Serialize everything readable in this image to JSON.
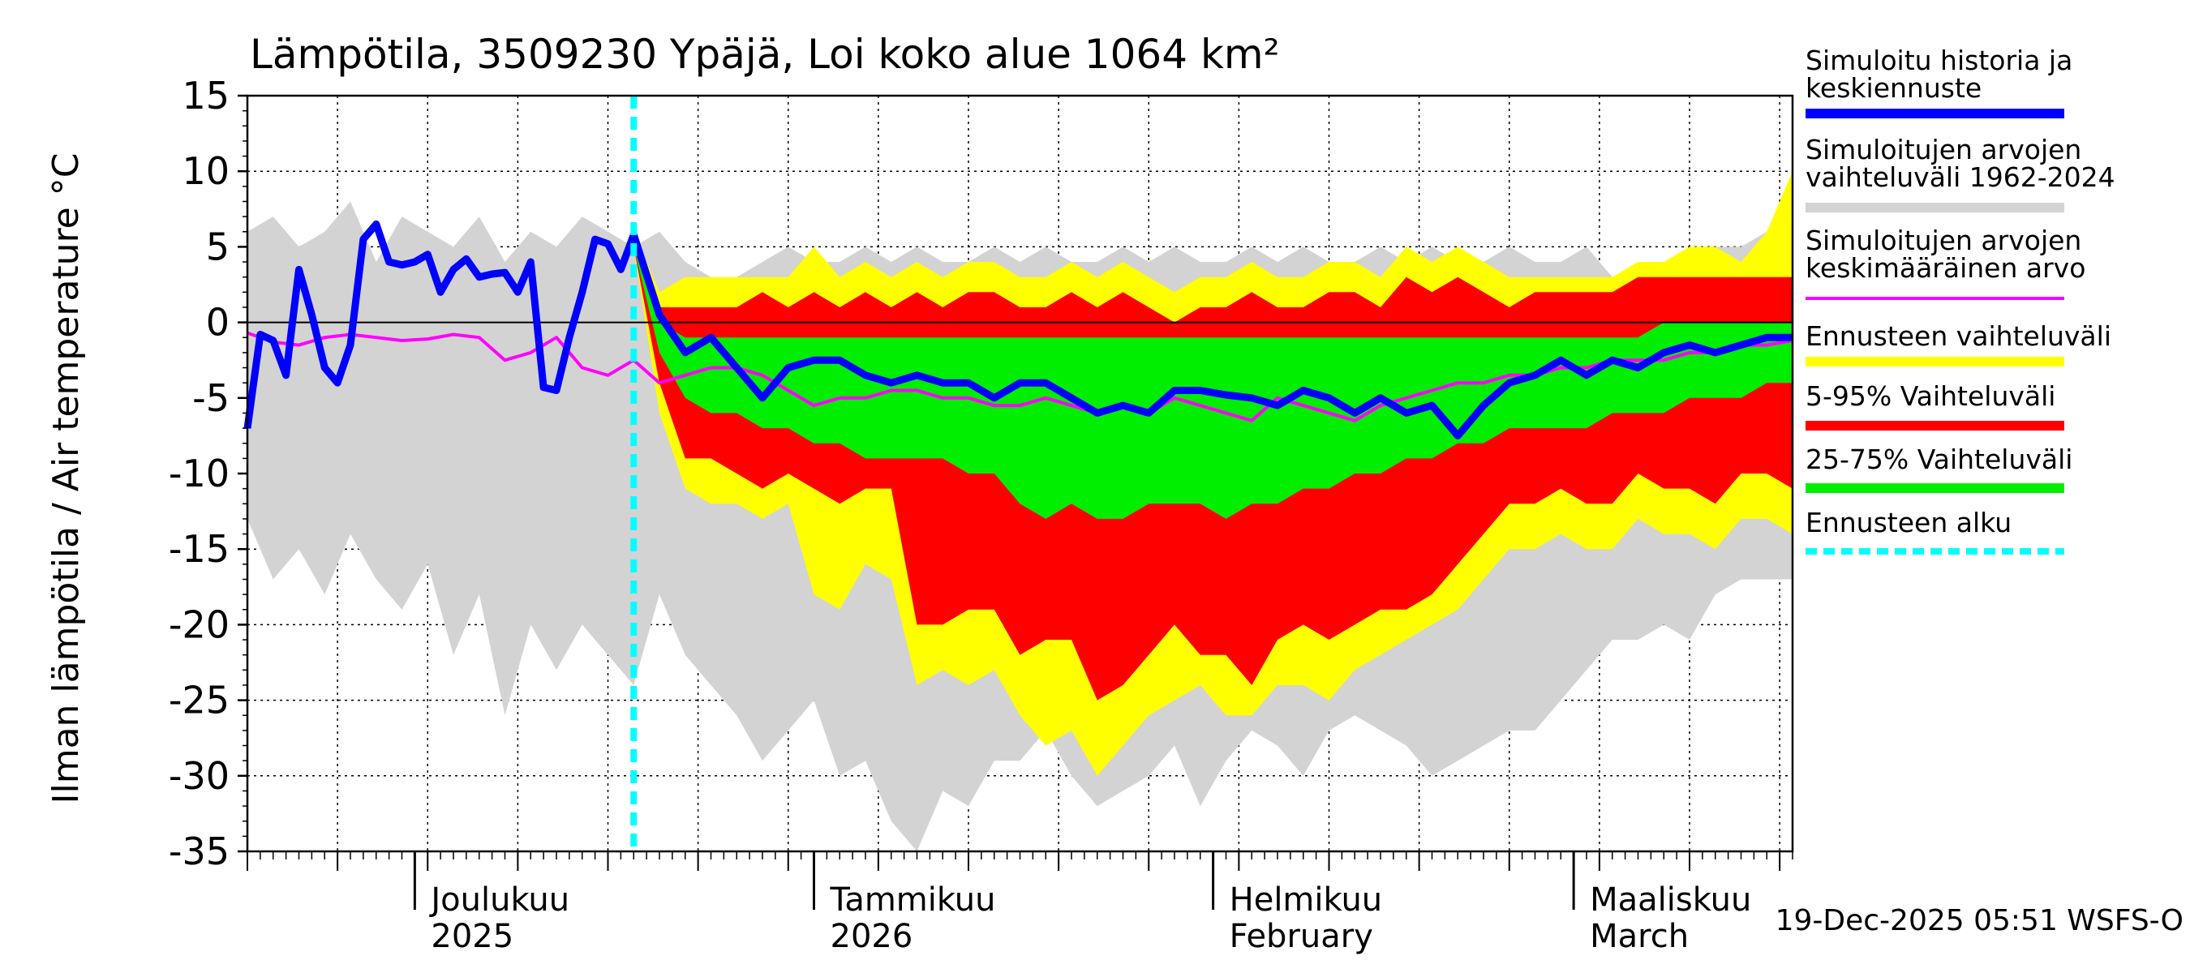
{
  "chart_data": {
    "type": "area",
    "title": "Lämpötila, 3509230 Ypäjä, Loi koko alue 1064 km²",
    "ylabel": "Ilman lämpötila / Air temperature   °C",
    "ylim": [
      -35,
      15
    ],
    "yticks": [
      15,
      10,
      5,
      0,
      -5,
      -10,
      -15,
      -20,
      -25,
      -30,
      -35
    ],
    "x_range_days": [
      0,
      120
    ],
    "forecast_start_day": 30,
    "month_labels": [
      {
        "day": 13,
        "line1": "Joulukuu",
        "line2": "2025"
      },
      {
        "day": 44,
        "line1": "Tammikuu",
        "line2": "2026"
      },
      {
        "day": 75,
        "line1": "Helmikuu",
        "line2": "February"
      },
      {
        "day": 103,
        "line1": "Maaliskuu",
        "line2": "March"
      }
    ],
    "month_boundaries": [
      13,
      44,
      75,
      103
    ],
    "footer": "19-Dec-2025 05:51 WSFS-O",
    "colors": {
      "history": "#0000ff",
      "range_1962_2024": "#d3d3d3",
      "mean": "#ff00ff",
      "forecast_range": "#ffff00",
      "p5_95": "#ff0000",
      "p25_75": "#00ee00",
      "forecast_start": "#00ffff"
    },
    "legend": [
      {
        "key": "history",
        "lines": [
          "Simuloitu historia ja",
          "keskiennuste"
        ],
        "style": "thick"
      },
      {
        "key": "range_1962_2024",
        "lines": [
          "Simuloitujen arvojen",
          "vaihteluväli 1962-2024"
        ],
        "style": "thick"
      },
      {
        "key": "mean",
        "lines": [
          "Simuloitujen arvojen",
          "keskimääräinen arvo"
        ],
        "style": "thin"
      },
      {
        "key": "forecast_range",
        "lines": [
          "Ennusteen vaihteluväli"
        ],
        "style": "thick"
      },
      {
        "key": "p5_95",
        "lines": [
          "5-95% Vaihteluväli"
        ],
        "style": "thick"
      },
      {
        "key": "p25_75",
        "lines": [
          "25-75% Vaihteluväli"
        ],
        "style": "thick"
      },
      {
        "key": "forecast_start",
        "lines": [
          "Ennusteen alku"
        ],
        "style": "dashed"
      }
    ],
    "series": [
      {
        "name": "Simuloitujen arvojen vaihteluväli 1962-2024",
        "type": "band",
        "x": [
          0,
          2,
          4,
          6,
          8,
          10,
          12,
          14,
          16,
          18,
          20,
          22,
          24,
          26,
          28,
          30,
          32,
          34,
          36,
          38,
          40,
          42,
          44,
          46,
          48,
          50,
          52,
          54,
          56,
          58,
          60,
          62,
          64,
          66,
          68,
          70,
          72,
          74,
          76,
          78,
          80,
          82,
          84,
          86,
          88,
          90,
          92,
          94,
          96,
          98,
          100,
          102,
          104,
          106,
          108,
          110,
          112,
          114,
          116,
          118,
          120
        ],
        "upper": [
          6,
          7,
          5,
          6,
          8,
          4,
          7,
          6,
          5,
          7,
          4,
          6,
          5,
          7,
          6,
          5,
          6,
          4,
          3,
          3,
          4,
          5,
          4,
          4,
          5,
          4,
          5,
          4,
          4,
          5,
          4,
          5,
          4,
          4,
          5,
          4,
          5,
          4,
          4,
          5,
          4,
          5,
          4,
          4,
          5,
          4,
          5,
          4,
          4,
          5,
          4,
          4,
          5,
          3,
          3,
          4,
          4,
          5,
          5,
          6,
          8
        ],
        "lower": [
          -13,
          -17,
          -15,
          -18,
          -14,
          -17,
          -19,
          -16,
          -22,
          -18,
          -26,
          -20,
          -23,
          -20,
          -22,
          -24,
          -18,
          -22,
          -24,
          -26,
          -29,
          -27,
          -25,
          -30,
          -29,
          -33,
          -35,
          -31,
          -32,
          -29,
          -29,
          -27,
          -30,
          -32,
          -31,
          -30,
          -28,
          -32,
          -29,
          -27,
          -28,
          -30,
          -27,
          -26,
          -27,
          -28,
          -30,
          -29,
          -28,
          -27,
          -27,
          -25,
          -23,
          -21,
          -21,
          -20,
          -21,
          -18,
          -17,
          -17,
          -17
        ]
      },
      {
        "name": "Ennusteen vaihteluväli",
        "type": "band",
        "x": [
          30,
          32,
          34,
          36,
          38,
          40,
          42,
          44,
          46,
          48,
          50,
          52,
          54,
          56,
          58,
          60,
          62,
          64,
          66,
          68,
          70,
          72,
          74,
          76,
          78,
          80,
          82,
          84,
          86,
          88,
          90,
          92,
          94,
          96,
          98,
          100,
          102,
          104,
          106,
          108,
          110,
          112,
          114,
          116,
          118,
          120
        ],
        "upper": [
          6,
          2,
          3,
          3,
          3,
          3,
          3,
          5,
          3,
          4,
          3,
          4,
          3,
          4,
          4,
          3,
          3,
          4,
          3,
          4,
          3,
          2,
          3,
          3,
          4,
          3,
          3,
          4,
          4,
          3,
          5,
          4,
          5,
          4,
          3,
          3,
          3,
          3,
          3,
          4,
          4,
          5,
          5,
          4,
          6,
          10
        ],
        "lower": [
          5,
          -6,
          -11,
          -12,
          -12,
          -13,
          -12,
          -18,
          -19,
          -16,
          -17,
          -24,
          -23,
          -24,
          -23,
          -26,
          -28,
          -27,
          -30,
          -28,
          -26,
          -25,
          -24,
          -26,
          -26,
          -24,
          -24,
          -25,
          -23,
          -22,
          -21,
          -20,
          -19,
          -17,
          -15,
          -15,
          -14,
          -15,
          -15,
          -13,
          -14,
          -14,
          -15,
          -13,
          -13,
          -14
        ]
      },
      {
        "name": "5-95% Vaihteluväli",
        "type": "band",
        "x": [
          30,
          32,
          34,
          36,
          38,
          40,
          42,
          44,
          46,
          48,
          50,
          52,
          54,
          56,
          58,
          60,
          62,
          64,
          66,
          68,
          70,
          72,
          74,
          76,
          78,
          80,
          82,
          84,
          86,
          88,
          90,
          92,
          94,
          96,
          98,
          100,
          102,
          104,
          106,
          108,
          110,
          112,
          114,
          116,
          118,
          120
        ],
        "upper": [
          5,
          1,
          1,
          1,
          1,
          2,
          1,
          2,
          1,
          2,
          1,
          2,
          1,
          2,
          2,
          1,
          1,
          2,
          1,
          2,
          1,
          0,
          1,
          1,
          2,
          1,
          1,
          2,
          2,
          1,
          3,
          2,
          3,
          2,
          1,
          2,
          2,
          2,
          2,
          3,
          3,
          3,
          3,
          3,
          3,
          3
        ],
        "lower": [
          5,
          -4,
          -9,
          -9,
          -10,
          -11,
          -10,
          -11,
          -12,
          -11,
          -11,
          -20,
          -20,
          -19,
          -19,
          -22,
          -21,
          -21,
          -25,
          -24,
          -22,
          -20,
          -22,
          -22,
          -24,
          -21,
          -20,
          -21,
          -20,
          -19,
          -19,
          -18,
          -16,
          -14,
          -12,
          -12,
          -11,
          -12,
          -12,
          -10,
          -11,
          -11,
          -12,
          -10,
          -10,
          -11
        ]
      },
      {
        "name": "25-75% Vaihteluväli",
        "type": "band",
        "x": [
          30,
          32,
          34,
          36,
          38,
          40,
          42,
          44,
          46,
          48,
          50,
          52,
          54,
          56,
          58,
          60,
          62,
          64,
          66,
          68,
          70,
          72,
          74,
          76,
          78,
          80,
          82,
          84,
          86,
          88,
          90,
          92,
          94,
          96,
          98,
          100,
          102,
          104,
          106,
          108,
          110,
          112,
          114,
          116,
          118,
          120
        ],
        "upper": [
          5,
          0,
          -1,
          -1,
          -1,
          -1,
          -1,
          -1,
          -1,
          -1,
          -1,
          -1,
          -1,
          -1,
          -1,
          -1,
          -1,
          -1,
          -1,
          -1,
          -1,
          -1,
          -1,
          -1,
          -1,
          -1,
          -1,
          -1,
          -1,
          -1,
          -1,
          -1,
          -1,
          -1,
          -1,
          -1,
          -1,
          -1,
          -1,
          -1,
          0,
          0,
          0,
          0,
          0,
          0
        ],
        "lower": [
          5,
          -2,
          -5,
          -6,
          -6,
          -7,
          -7,
          -8,
          -8,
          -9,
          -9,
          -9,
          -9,
          -10,
          -10,
          -12,
          -13,
          -12,
          -13,
          -13,
          -12,
          -12,
          -12,
          -13,
          -12,
          -12,
          -11,
          -11,
          -10,
          -10,
          -9,
          -9,
          -8,
          -8,
          -7,
          -7,
          -7,
          -7,
          -6,
          -6,
          -6,
          -5,
          -5,
          -5,
          -4,
          -4
        ]
      },
      {
        "name": "Simuloitu historia ja keskiennuste",
        "type": "line",
        "x": [
          0,
          1,
          2,
          3,
          4,
          5,
          6,
          7,
          8,
          9,
          10,
          11,
          12,
          13,
          14,
          15,
          16,
          17,
          18,
          19,
          20,
          21,
          22,
          23,
          24,
          25,
          26,
          27,
          28,
          29,
          30,
          32,
          34,
          36,
          38,
          40,
          42,
          44,
          46,
          48,
          50,
          52,
          54,
          56,
          58,
          60,
          62,
          64,
          66,
          68,
          70,
          72,
          74,
          76,
          78,
          80,
          82,
          84,
          86,
          88,
          90,
          92,
          94,
          96,
          98,
          100,
          102,
          104,
          106,
          108,
          110,
          112,
          114,
          116,
          118,
          120
        ],
        "values": [
          -7,
          -0.8,
          -1.2,
          -3.5,
          3.5,
          0.5,
          -3,
          -4,
          -1.5,
          5.5,
          6.5,
          4,
          3.8,
          4,
          4.5,
          2,
          3.5,
          4.2,
          3,
          3.2,
          3.3,
          2,
          4,
          -4.3,
          -4.5,
          -1,
          2,
          5.5,
          5.2,
          3.5,
          5.8,
          0.5,
          -2,
          -1,
          -3,
          -5,
          -3,
          -2.5,
          -2.5,
          -3.5,
          -4,
          -3.5,
          -4,
          -4,
          -5,
          -4,
          -4,
          -5,
          -6,
          -5.5,
          -6,
          -4.5,
          -4.5,
          -4.8,
          -5,
          -5.5,
          -4.5,
          -5,
          -6,
          -5,
          -6,
          -5.5,
          -7.5,
          -5.5,
          -4,
          -3.5,
          -2.5,
          -3.5,
          -2.5,
          -3,
          -2,
          -1.5,
          -2,
          -1.5,
          -1,
          -1
        ]
      },
      {
        "name": "Simuloitujen arvojen keskimääräinen arvo",
        "type": "line",
        "x": [
          0,
          2,
          4,
          6,
          8,
          10,
          12,
          14,
          16,
          18,
          20,
          22,
          24,
          26,
          28,
          30,
          32,
          34,
          36,
          38,
          40,
          42,
          44,
          46,
          48,
          50,
          52,
          54,
          56,
          58,
          60,
          62,
          64,
          66,
          68,
          70,
          72,
          74,
          76,
          78,
          80,
          82,
          84,
          86,
          88,
          90,
          92,
          94,
          96,
          98,
          100,
          102,
          104,
          106,
          108,
          110,
          112,
          114,
          116,
          118,
          120
        ],
        "values": [
          -0.7,
          -1.3,
          -1.5,
          -1,
          -0.8,
          -1,
          -1.2,
          -1.1,
          -0.8,
          -1,
          -2.5,
          -2,
          -1,
          -3,
          -3.5,
          -2.5,
          -4,
          -3.5,
          -3,
          -3,
          -3.5,
          -4.5,
          -5.5,
          -5,
          -5,
          -4.5,
          -4.5,
          -5,
          -5,
          -5.5,
          -5.5,
          -5,
          -5.5,
          -6,
          -5.5,
          -6,
          -5,
          -5.5,
          -6,
          -6.5,
          -5,
          -5.5,
          -6,
          -6.5,
          -5.5,
          -5,
          -4.5,
          -4,
          -4,
          -3.5,
          -3.5,
          -3,
          -3,
          -2.5,
          -2.5,
          -2.5,
          -2,
          -2,
          -1.5,
          -1.5,
          -1.2
        ]
      }
    ]
  }
}
